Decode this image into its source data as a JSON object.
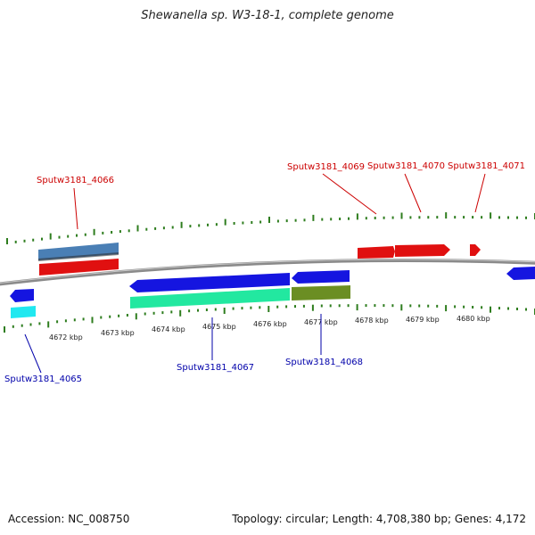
{
  "title": "Shewanella sp. W3-18-1, complete genome",
  "footer": {
    "accession": "Accession: NC_008750",
    "info": "Topology: circular; Length: 4,708,380 bp; Genes: 4,172"
  },
  "colors": {
    "background": "#ffffff",
    "backbone": "#8a8a8a",
    "tick": "#2e7d1e",
    "forward_label": "#cc0000",
    "reverse_label": "#0000aa"
  },
  "scale": {
    "labels": [
      "4672 kbp",
      "4673 kbp",
      "4674 kbp",
      "4675 kbp",
      "4676 kbp",
      "4677 kbp",
      "4678 kbp",
      "4679 kbp",
      "4680 kbp"
    ]
  },
  "genes": {
    "forward_labels": [
      "Sputw3181_4066",
      "Sputw3181_4069",
      "Sputw3181_4070",
      "Sputw3181_4071"
    ],
    "reverse_labels": [
      "Sputw3181_4065",
      "Sputw3181_4067",
      "Sputw3181_4068"
    ],
    "track_colors": {
      "forward_cds": "#e01010",
      "forward_rna": "#4a7fb5",
      "reverse_cds": "#1515e0",
      "reverse_gene": "#22e8a0",
      "reverse_gene_alt": "#6b8e23",
      "reverse_small": "#20e8f0"
    }
  }
}
